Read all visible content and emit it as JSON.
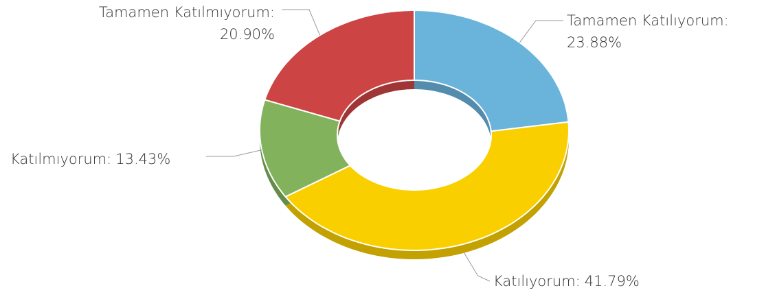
{
  "chart_data": {
    "type": "donut",
    "categories": [
      "Tamamen Katılıyorum:",
      "Katılıyorum:",
      "Katılmıyorum:",
      "Tamamen Katılmıyorum:"
    ],
    "values": [
      23.88,
      41.79,
      13.43,
      20.9
    ],
    "value_labels": [
      "23.88%",
      "41.79%",
      "13.43%",
      "20.90%"
    ],
    "colors": [
      "#6ab4dc",
      "#f9cf00",
      "#82b35c",
      "#cc4444"
    ]
  }
}
